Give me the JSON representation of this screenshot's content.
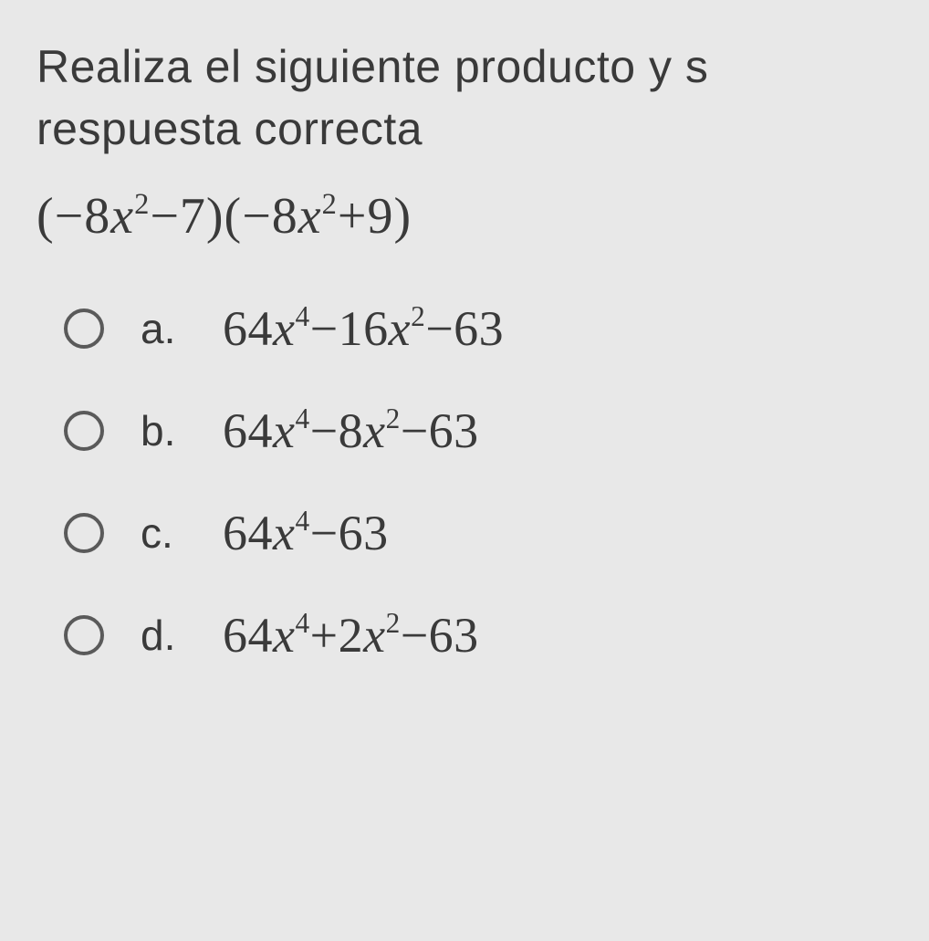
{
  "question": {
    "line1": "Realiza el siguiente producto y s",
    "line2": "respuesta correcta"
  },
  "expression": {
    "html": "(−8<span class='ital'>x</span><sup>2</sup>−7)(−8<span class='ital'>x</span><sup>2</sup>+9)"
  },
  "options": [
    {
      "letter": "a.",
      "html": "64<span class='ital'>x</span><sup>4</sup>−16<span class='ital'>x</span><sup>2</sup>−63"
    },
    {
      "letter": "b.",
      "html": "64<span class='ital'>x</span><sup>4</sup>−8<span class='ital'>x</span><sup>2</sup>−63"
    },
    {
      "letter": "c.",
      "html": "64<span class='ital'>x</span><sup>4</sup>−63"
    },
    {
      "letter": "d.",
      "html": "64<span class='ital'>x</span><sup>4</sup>+2<span class='ital'>x</span><sup>2</sup>−63"
    }
  ],
  "styling": {
    "background_color": "#e8e8e8",
    "text_color": "#3a3a3a",
    "radio_border_color": "#5a5a5a",
    "question_fontsize": 50,
    "expression_fontsize": 56,
    "option_letter_fontsize": 46,
    "option_math_fontsize": 54,
    "radio_size": 44,
    "radio_border_width": 4
  }
}
